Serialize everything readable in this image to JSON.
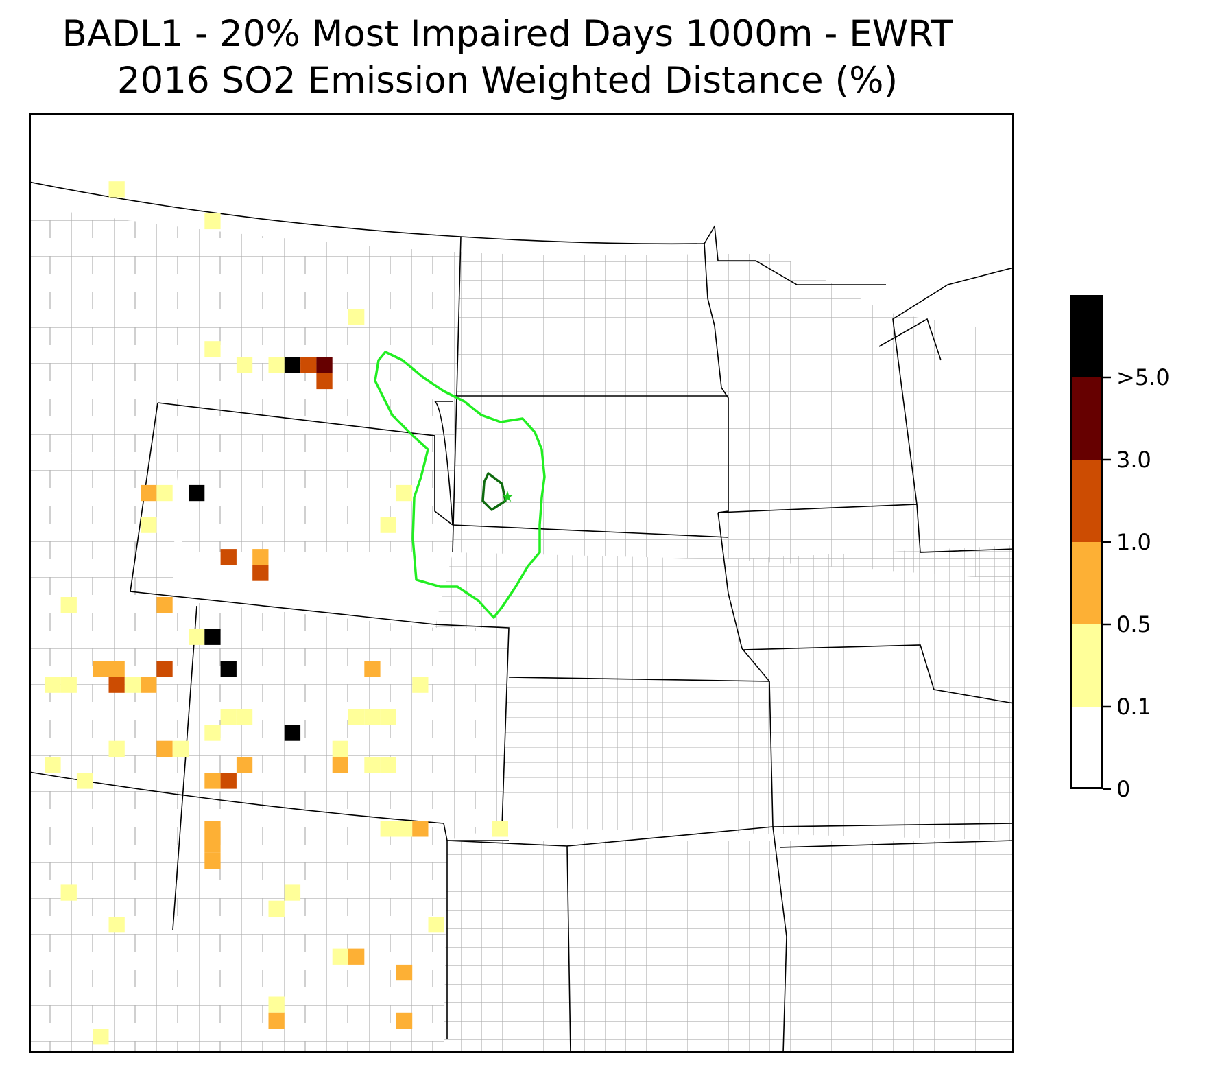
{
  "title": {
    "line1": "BADL1 - 20% Most Impaired Days 1000m - EWRT",
    "line2": "2016 SO2 Emission Weighted Distance (%)"
  },
  "colorbar": {
    "tick_labels": [
      ">5.0",
      "3.0",
      "1.0",
      "0.5",
      "0.1",
      "0"
    ],
    "bins": [
      {
        "range": "0-0.1",
        "color": "#ffffff"
      },
      {
        "range": "0.1-0.5",
        "color": "#ffff99"
      },
      {
        "range": "0.5-1.0",
        "color": "#fdb035"
      },
      {
        "range": "1.0-3.0",
        "color": "#cc4c02"
      },
      {
        "range": "3.0-5.0",
        "color": "#660000"
      },
      {
        "range": ">5.0",
        "color": "#000000"
      }
    ]
  },
  "colors": {
    "aoi_contour": "#22ee22",
    "inner_contour": "#0f6b0f",
    "site_marker": "#22cc22",
    "county_lines": "#b0b0b0",
    "state_lines": "#000000"
  },
  "map": {
    "site_name": "BADL1",
    "cells": [
      {
        "c": 5,
        "r": 4,
        "bin": 1
      },
      {
        "c": 11,
        "r": 6,
        "bin": 1
      },
      {
        "c": 11,
        "r": 14,
        "bin": 1
      },
      {
        "c": 20,
        "r": 12,
        "bin": 1
      },
      {
        "c": 13,
        "r": 15,
        "bin": 1
      },
      {
        "c": 15,
        "r": 15,
        "bin": 1
      },
      {
        "c": 16,
        "r": 15,
        "bin": 5
      },
      {
        "c": 17,
        "r": 15,
        "bin": 3
      },
      {
        "c": 18,
        "r": 15,
        "bin": 4
      },
      {
        "c": 18,
        "r": 16,
        "bin": 3
      },
      {
        "c": 7,
        "r": 23,
        "bin": 2
      },
      {
        "c": 8,
        "r": 23,
        "bin": 1
      },
      {
        "c": 10,
        "r": 23,
        "bin": 5
      },
      {
        "c": 23,
        "r": 23,
        "bin": 1
      },
      {
        "c": 7,
        "r": 25,
        "bin": 1
      },
      {
        "c": 22,
        "r": 25,
        "bin": 1
      },
      {
        "c": 12,
        "r": 27,
        "bin": 3
      },
      {
        "c": 14,
        "r": 27,
        "bin": 2
      },
      {
        "c": 14,
        "r": 28,
        "bin": 3
      },
      {
        "c": 2,
        "r": 30,
        "bin": 1
      },
      {
        "c": 8,
        "r": 30,
        "bin": 2
      },
      {
        "c": 10,
        "r": 32,
        "bin": 1
      },
      {
        "c": 11,
        "r": 32,
        "bin": 5
      },
      {
        "c": 4,
        "r": 34,
        "bin": 2
      },
      {
        "c": 5,
        "r": 34,
        "bin": 2
      },
      {
        "c": 5,
        "r": 35,
        "bin": 3
      },
      {
        "c": 6,
        "r": 35,
        "bin": 1
      },
      {
        "c": 7,
        "r": 35,
        "bin": 2
      },
      {
        "c": 8,
        "r": 34,
        "bin": 3
      },
      {
        "c": 12,
        "r": 34,
        "bin": 5
      },
      {
        "c": 21,
        "r": 34,
        "bin": 2
      },
      {
        "c": 1,
        "r": 35,
        "bin": 1
      },
      {
        "c": 2,
        "r": 35,
        "bin": 1
      },
      {
        "c": 24,
        "r": 35,
        "bin": 1
      },
      {
        "c": 12,
        "r": 37,
        "bin": 1
      },
      {
        "c": 13,
        "r": 37,
        "bin": 1
      },
      {
        "c": 20,
        "r": 37,
        "bin": 1
      },
      {
        "c": 21,
        "r": 37,
        "bin": 1
      },
      {
        "c": 22,
        "r": 37,
        "bin": 1
      },
      {
        "c": 11,
        "r": 38,
        "bin": 1
      },
      {
        "c": 16,
        "r": 38,
        "bin": 5
      },
      {
        "c": 5,
        "r": 39,
        "bin": 1
      },
      {
        "c": 8,
        "r": 39,
        "bin": 2
      },
      {
        "c": 9,
        "r": 39,
        "bin": 1
      },
      {
        "c": 19,
        "r": 39,
        "bin": 1
      },
      {
        "c": 1,
        "r": 40,
        "bin": 1
      },
      {
        "c": 13,
        "r": 40,
        "bin": 2
      },
      {
        "c": 19,
        "r": 40,
        "bin": 2
      },
      {
        "c": 21,
        "r": 40,
        "bin": 1
      },
      {
        "c": 22,
        "r": 40,
        "bin": 1
      },
      {
        "c": 3,
        "r": 41,
        "bin": 1
      },
      {
        "c": 11,
        "r": 41,
        "bin": 2
      },
      {
        "c": 12,
        "r": 41,
        "bin": 3
      },
      {
        "c": 11,
        "r": 44,
        "bin": 2
      },
      {
        "c": 11,
        "r": 45,
        "bin": 2
      },
      {
        "c": 11,
        "r": 46,
        "bin": 2
      },
      {
        "c": 22,
        "r": 44,
        "bin": 1
      },
      {
        "c": 23,
        "r": 44,
        "bin": 1
      },
      {
        "c": 24,
        "r": 44,
        "bin": 2
      },
      {
        "c": 29,
        "r": 44,
        "bin": 1
      },
      {
        "c": 2,
        "r": 48,
        "bin": 1
      },
      {
        "c": 16,
        "r": 48,
        "bin": 1
      },
      {
        "c": 15,
        "r": 49,
        "bin": 1
      },
      {
        "c": 5,
        "r": 50,
        "bin": 1
      },
      {
        "c": 25,
        "r": 50,
        "bin": 1
      },
      {
        "c": 19,
        "r": 52,
        "bin": 1
      },
      {
        "c": 20,
        "r": 52,
        "bin": 2
      },
      {
        "c": 23,
        "r": 53,
        "bin": 2
      },
      {
        "c": 15,
        "r": 55,
        "bin": 1
      },
      {
        "c": 15,
        "r": 56,
        "bin": 2
      },
      {
        "c": 23,
        "r": 56,
        "bin": 2
      },
      {
        "c": 4,
        "r": 57,
        "bin": 1
      }
    ]
  }
}
